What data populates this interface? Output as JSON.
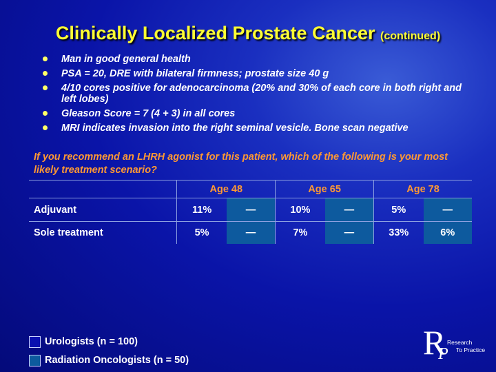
{
  "title": {
    "main": "Clinically Localized Prostate Cancer",
    "suffix": "(continued)"
  },
  "bullets": [
    "Man in good general health",
    "PSA = 20, DRE with bilateral firmness; prostate size 40 g",
    "4/10 cores positive for adenocarcinoma (20% and 30% of each core in both right and left lobes)",
    "Gleason Score = 7 (4 + 3) in all cores",
    "MRI indicates invasion into the right seminal vesicle. Bone scan negative"
  ],
  "question": "If you recommend an LHRH agonist for this patient, which of the following is your most likely treatment scenario?",
  "table": {
    "age_headers": [
      "Age 48",
      "Age 65",
      "Age 78"
    ],
    "rows": [
      {
        "label": "Adjuvant",
        "values": [
          "11%",
          "—",
          "10%",
          "—",
          "5%",
          "—"
        ]
      },
      {
        "label": "Sole treatment",
        "values": [
          "5%",
          "—",
          "7%",
          "—",
          "33%",
          "6%"
        ]
      }
    ]
  },
  "legend": [
    {
      "label": "Urologists  (n = 100)",
      "color": "#0a10b0"
    },
    {
      "label": "Radiation Oncologists  (n = 50)",
      "color": "#0d5a9e"
    }
  ],
  "logo": {
    "letter_r": "R",
    "letter_p": "P",
    "line1": "Research",
    "line2": "To Practice"
  }
}
